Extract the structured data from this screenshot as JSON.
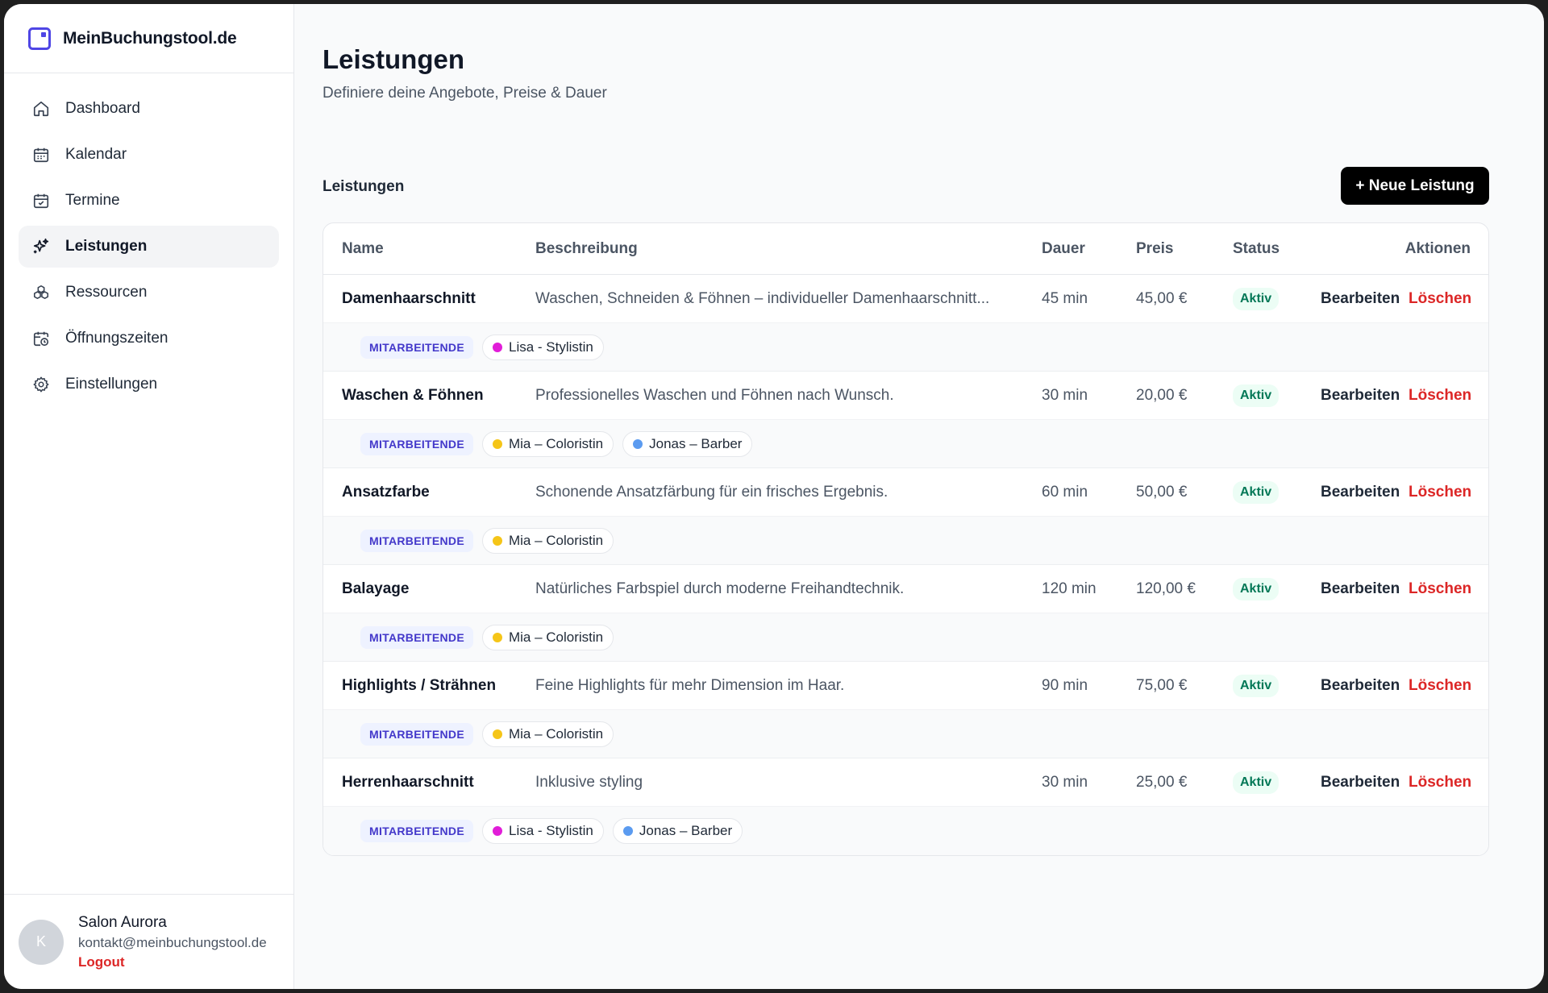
{
  "brand": {
    "name": "MeinBuchungstool.de"
  },
  "sidebar": {
    "items": [
      {
        "label": "Dashboard",
        "icon": "home-icon"
      },
      {
        "label": "Kalendar",
        "icon": "calendar-icon"
      },
      {
        "label": "Termine",
        "icon": "calendar-check-icon"
      },
      {
        "label": "Leistungen",
        "icon": "sparkles-icon",
        "active": true
      },
      {
        "label": "Ressourcen",
        "icon": "boxes-icon"
      },
      {
        "label": "Öffnungszeiten",
        "icon": "calendar-clock-icon"
      },
      {
        "label": "Einstellungen",
        "icon": "gear-icon"
      }
    ]
  },
  "user": {
    "initial": "K",
    "name": "Salon Aurora",
    "email": "kontakt@meinbuchungstool.de",
    "logout": "Logout"
  },
  "page": {
    "title": "Leistungen",
    "subtitle": "Definiere deine Angebote, Preise & Dauer",
    "section_title": "Leistungen",
    "new_button": "+ Neue Leistung"
  },
  "table": {
    "headers": {
      "name": "Name",
      "description": "Beschreibung",
      "duration": "Dauer",
      "price": "Preis",
      "status": "Status",
      "actions": "Aktionen"
    },
    "staff_label": "MITARBEITENDE",
    "edit_label": "Bearbeiten",
    "delete_label": "Löschen",
    "rows": [
      {
        "name": "Damenhaarschnitt",
        "description": "Waschen, Schneiden & Föhnen – individueller Damenhaarschnitt...",
        "duration": "45 min",
        "price": "45,00 €",
        "status": "Aktiv",
        "staff": [
          {
            "name": "Lisa - Stylistin",
            "color": "#e11dd8"
          }
        ]
      },
      {
        "name": "Waschen & Föhnen",
        "description": "Professionelles Waschen und Föhnen nach Wunsch.",
        "duration": "30 min",
        "price": "20,00 €",
        "status": "Aktiv",
        "staff": [
          {
            "name": "Mia – Coloristin",
            "color": "#f5c518"
          },
          {
            "name": "Jonas – Barber",
            "color": "#5b9bf0"
          }
        ]
      },
      {
        "name": "Ansatzfarbe",
        "description": "Schonende Ansatzfärbung für ein frisches Ergebnis.",
        "duration": "60 min",
        "price": "50,00 €",
        "status": "Aktiv",
        "staff": [
          {
            "name": "Mia – Coloristin",
            "color": "#f5c518"
          }
        ]
      },
      {
        "name": "Balayage",
        "description": "Natürliches Farbspiel durch moderne Freihandtechnik.",
        "duration": "120 min",
        "price": "120,00 €",
        "status": "Aktiv",
        "staff": [
          {
            "name": "Mia – Coloristin",
            "color": "#f5c518"
          }
        ]
      },
      {
        "name": "Highlights / Strähnen",
        "description": "Feine Highlights für mehr Dimension im Haar.",
        "duration": "90 min",
        "price": "75,00 €",
        "status": "Aktiv",
        "staff": [
          {
            "name": "Mia – Coloristin",
            "color": "#f5c518"
          }
        ]
      },
      {
        "name": "Herrenhaarschnitt",
        "description": "Inklusive styling",
        "duration": "30 min",
        "price": "25,00 €",
        "status": "Aktiv",
        "staff": [
          {
            "name": "Lisa - Stylistin",
            "color": "#e11dd8"
          },
          {
            "name": "Jonas – Barber",
            "color": "#5b9bf0"
          }
        ]
      }
    ]
  },
  "colors": {
    "accent": "#4f46e5",
    "danger": "#dc2626",
    "active_badge_bg": "#ecfdf5",
    "active_badge_text": "#047857"
  }
}
